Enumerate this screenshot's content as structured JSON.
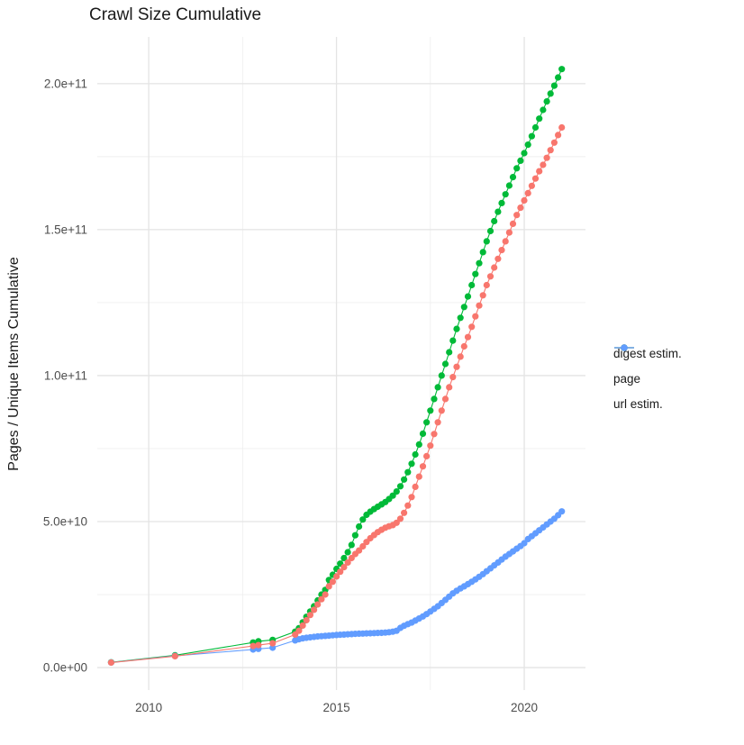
{
  "title": "Crawl Size Cumulative",
  "y_axis": {
    "label": "Pages / Unique Items Cumulative",
    "ticks": [
      {
        "value_e9": 0,
        "label": "0.0e+00"
      },
      {
        "value_e9": 50,
        "label": "5.0e+10"
      },
      {
        "value_e9": 100,
        "label": "1.0e+11"
      },
      {
        "value_e9": 150,
        "label": "1.5e+11"
      },
      {
        "value_e9": 200,
        "label": "2.0e+11"
      }
    ],
    "minor_ticks_e9": [
      25,
      75,
      125,
      175
    ]
  },
  "x_axis": {
    "ticks": [
      {
        "value": 2010,
        "label": "2010"
      },
      {
        "value": 2015,
        "label": "2015"
      },
      {
        "value": 2020,
        "label": "2020"
      }
    ],
    "minor_ticks": [
      2012.5,
      2017.5
    ]
  },
  "legend": [
    {
      "id": "digest",
      "label": "digest estim.",
      "color": "#F8766D"
    },
    {
      "id": "page",
      "label": "page",
      "color": "#00BA38"
    },
    {
      "id": "url",
      "label": "url estim.",
      "color": "#619CFF"
    }
  ],
  "colors": {
    "major_grid": "#e4e4e4",
    "minor_grid": "#efefef",
    "tick_text": "#4d4d4d",
    "title_text": "#1a1a1a"
  },
  "chart_data": {
    "type": "line",
    "title": "Crawl Size Cumulative",
    "xlabel": "",
    "ylabel": "Pages / Unique Items Cumulative",
    "x_unit": "year (decimal)",
    "y_unit": "count (billions, 1e9)",
    "xlim": [
      2008.63,
      2021.63
    ],
    "ylim_e9": [
      -7.7,
      216.0
    ],
    "grid": true,
    "legend_position": "right",
    "marker": "point",
    "series": [
      {
        "name": "digest estim.",
        "color": "#F8766D",
        "points": [
          [
            2009.0,
            1.7
          ],
          [
            2010.7,
            3.9
          ],
          [
            2012.78,
            7.4
          ],
          [
            2012.92,
            7.7
          ],
          [
            2013.3,
            8.3
          ],
          [
            2013.9,
            11.3
          ],
          [
            2014.0,
            12.6
          ],
          [
            2014.1,
            14.4
          ],
          [
            2014.2,
            16.2
          ],
          [
            2014.3,
            18.0
          ],
          [
            2014.4,
            19.8
          ],
          [
            2014.5,
            21.6
          ],
          [
            2014.6,
            23.4
          ],
          [
            2014.7,
            25.0
          ],
          [
            2014.8,
            27.8
          ],
          [
            2014.9,
            29.4
          ],
          [
            2015.0,
            31.2
          ],
          [
            2015.1,
            32.8
          ],
          [
            2015.2,
            34.4
          ],
          [
            2015.3,
            36.0
          ],
          [
            2015.4,
            37.5
          ],
          [
            2015.5,
            38.9
          ],
          [
            2015.6,
            40.1
          ],
          [
            2015.7,
            41.5
          ],
          [
            2015.8,
            43.0
          ],
          [
            2015.9,
            44.3
          ],
          [
            2016.0,
            45.4
          ],
          [
            2016.1,
            46.4
          ],
          [
            2016.2,
            47.2
          ],
          [
            2016.3,
            47.9
          ],
          [
            2016.4,
            48.4
          ],
          [
            2016.5,
            48.8
          ],
          [
            2016.6,
            49.6
          ],
          [
            2016.7,
            51.0
          ],
          [
            2016.8,
            53.0
          ],
          [
            2016.9,
            55.5
          ],
          [
            2017.0,
            58.4
          ],
          [
            2017.1,
            61.9
          ],
          [
            2017.2,
            65.4
          ],
          [
            2017.3,
            68.9
          ],
          [
            2017.4,
            72.4
          ],
          [
            2017.5,
            76.0
          ],
          [
            2017.6,
            80.0
          ],
          [
            2017.7,
            84.0
          ],
          [
            2017.8,
            88.0
          ],
          [
            2017.9,
            92.0
          ],
          [
            2018.0,
            96.0
          ],
          [
            2018.1,
            99.5
          ],
          [
            2018.2,
            103.0
          ],
          [
            2018.3,
            106.5
          ],
          [
            2018.4,
            110.0
          ],
          [
            2018.5,
            113.2
          ],
          [
            2018.6,
            116.7
          ],
          [
            2018.7,
            120.3
          ],
          [
            2018.8,
            124.0
          ],
          [
            2018.9,
            127.5
          ],
          [
            2019.0,
            131.0
          ],
          [
            2019.1,
            134.0
          ],
          [
            2019.2,
            137.0
          ],
          [
            2019.3,
            140.0
          ],
          [
            2019.4,
            143.0
          ],
          [
            2019.5,
            146.0
          ],
          [
            2019.6,
            149.0
          ],
          [
            2019.7,
            152.0
          ],
          [
            2019.8,
            155.0
          ],
          [
            2019.9,
            157.5
          ],
          [
            2020.0,
            160.0
          ],
          [
            2020.1,
            162.5
          ],
          [
            2020.2,
            165.0
          ],
          [
            2020.3,
            167.5
          ],
          [
            2020.4,
            170.0
          ],
          [
            2020.5,
            172.2
          ],
          [
            2020.6,
            174.6
          ],
          [
            2020.7,
            177.2
          ],
          [
            2020.8,
            179.8
          ],
          [
            2020.9,
            182.4
          ],
          [
            2021.0,
            185.0
          ]
        ]
      },
      {
        "name": "page",
        "color": "#00BA38",
        "points": [
          [
            2009.0,
            1.8
          ],
          [
            2010.7,
            4.2
          ],
          [
            2012.78,
            8.6
          ],
          [
            2012.92,
            9.0
          ],
          [
            2013.3,
            9.5
          ],
          [
            2013.9,
            12.3
          ],
          [
            2014.0,
            13.5
          ],
          [
            2014.1,
            15.5
          ],
          [
            2014.2,
            17.4
          ],
          [
            2014.3,
            19.2
          ],
          [
            2014.4,
            21.0
          ],
          [
            2014.5,
            23.0
          ],
          [
            2014.6,
            25.0
          ],
          [
            2014.7,
            26.6
          ],
          [
            2014.8,
            30.0
          ],
          [
            2014.9,
            31.8
          ],
          [
            2015.0,
            33.8
          ],
          [
            2015.1,
            35.6
          ],
          [
            2015.2,
            37.5
          ],
          [
            2015.3,
            39.5
          ],
          [
            2015.4,
            42.0
          ],
          [
            2015.5,
            45.3
          ],
          [
            2015.6,
            48.3
          ],
          [
            2015.7,
            50.7
          ],
          [
            2015.8,
            52.3
          ],
          [
            2015.9,
            53.4
          ],
          [
            2016.0,
            54.3
          ],
          [
            2016.1,
            55.1
          ],
          [
            2016.2,
            55.9
          ],
          [
            2016.3,
            56.7
          ],
          [
            2016.4,
            57.7
          ],
          [
            2016.5,
            58.9
          ],
          [
            2016.6,
            60.3
          ],
          [
            2016.7,
            62.1
          ],
          [
            2016.8,
            64.4
          ],
          [
            2016.9,
            66.9
          ],
          [
            2017.0,
            69.8
          ],
          [
            2017.1,
            73.0
          ],
          [
            2017.2,
            76.4
          ],
          [
            2017.3,
            80.1
          ],
          [
            2017.4,
            84.0
          ],
          [
            2017.5,
            88.0
          ],
          [
            2017.6,
            92.0
          ],
          [
            2017.7,
            96.0
          ],
          [
            2017.8,
            100.0
          ],
          [
            2017.9,
            104.0
          ],
          [
            2018.0,
            108.0
          ],
          [
            2018.1,
            112.0
          ],
          [
            2018.2,
            116.0
          ],
          [
            2018.3,
            119.8
          ],
          [
            2018.4,
            123.5
          ],
          [
            2018.5,
            127.1
          ],
          [
            2018.6,
            131.0
          ],
          [
            2018.7,
            134.8
          ],
          [
            2018.8,
            138.5
          ],
          [
            2018.9,
            142.3
          ],
          [
            2019.0,
            146.0
          ],
          [
            2019.1,
            149.5
          ],
          [
            2019.2,
            152.9
          ],
          [
            2019.3,
            156.1
          ],
          [
            2019.4,
            159.1
          ],
          [
            2019.5,
            162.1
          ],
          [
            2019.6,
            165.1
          ],
          [
            2019.7,
            168.0
          ],
          [
            2019.8,
            171.0
          ],
          [
            2019.9,
            173.6
          ],
          [
            2020.0,
            176.2
          ],
          [
            2020.1,
            179.1
          ],
          [
            2020.2,
            182.0
          ],
          [
            2020.3,
            185.0
          ],
          [
            2020.4,
            188.0
          ],
          [
            2020.5,
            191.0
          ],
          [
            2020.6,
            193.9
          ],
          [
            2020.7,
            196.6
          ],
          [
            2020.8,
            199.3
          ],
          [
            2020.9,
            202.1
          ],
          [
            2021.0,
            205.0
          ]
        ]
      },
      {
        "name": "url estim.",
        "color": "#619CFF",
        "points": [
          [
            2009.0,
            1.75
          ],
          [
            2010.7,
            4.0
          ],
          [
            2012.78,
            6.2
          ],
          [
            2012.92,
            6.4
          ],
          [
            2013.3,
            6.8
          ],
          [
            2013.9,
            9.3
          ],
          [
            2014.0,
            9.7
          ],
          [
            2014.1,
            10.0
          ],
          [
            2014.2,
            10.2
          ],
          [
            2014.3,
            10.35
          ],
          [
            2014.4,
            10.5
          ],
          [
            2014.5,
            10.65
          ],
          [
            2014.6,
            10.75
          ],
          [
            2014.7,
            10.85
          ],
          [
            2014.8,
            10.95
          ],
          [
            2014.9,
            11.05
          ],
          [
            2015.0,
            11.15
          ],
          [
            2015.1,
            11.25
          ],
          [
            2015.2,
            11.3
          ],
          [
            2015.3,
            11.4
          ],
          [
            2015.4,
            11.45
          ],
          [
            2015.5,
            11.55
          ],
          [
            2015.6,
            11.6
          ],
          [
            2015.7,
            11.65
          ],
          [
            2015.8,
            11.7
          ],
          [
            2015.9,
            11.75
          ],
          [
            2016.0,
            11.8
          ],
          [
            2016.1,
            11.85
          ],
          [
            2016.2,
            11.9
          ],
          [
            2016.3,
            12.0
          ],
          [
            2016.4,
            12.1
          ],
          [
            2016.5,
            12.3
          ],
          [
            2016.6,
            12.6
          ],
          [
            2016.7,
            13.6
          ],
          [
            2016.8,
            14.3
          ],
          [
            2016.9,
            14.9
          ],
          [
            2017.0,
            15.4
          ],
          [
            2017.1,
            16.1
          ],
          [
            2017.2,
            16.8
          ],
          [
            2017.3,
            17.5
          ],
          [
            2017.4,
            18.3
          ],
          [
            2017.5,
            19.2
          ],
          [
            2017.6,
            20.1
          ],
          [
            2017.7,
            21.0
          ],
          [
            2017.8,
            22.1
          ],
          [
            2017.9,
            23.2
          ],
          [
            2018.0,
            24.3
          ],
          [
            2018.1,
            25.4
          ],
          [
            2018.2,
            26.3
          ],
          [
            2018.3,
            27.1
          ],
          [
            2018.4,
            27.8
          ],
          [
            2018.5,
            28.6
          ],
          [
            2018.6,
            29.4
          ],
          [
            2018.7,
            30.2
          ],
          [
            2018.8,
            31.1
          ],
          [
            2018.9,
            32.0
          ],
          [
            2019.0,
            33.0
          ],
          [
            2019.1,
            34.0
          ],
          [
            2019.2,
            35.0
          ],
          [
            2019.3,
            36.0
          ],
          [
            2019.4,
            37.0
          ],
          [
            2019.5,
            38.0
          ],
          [
            2019.6,
            38.9
          ],
          [
            2019.7,
            39.8
          ],
          [
            2019.8,
            40.7
          ],
          [
            2019.9,
            41.6
          ],
          [
            2020.0,
            42.6
          ],
          [
            2020.1,
            44.0
          ],
          [
            2020.2,
            45.0
          ],
          [
            2020.3,
            46.0
          ],
          [
            2020.4,
            47.0
          ],
          [
            2020.5,
            48.0
          ],
          [
            2020.6,
            49.0
          ],
          [
            2020.7,
            50.0
          ],
          [
            2020.8,
            51.0
          ],
          [
            2020.9,
            52.2
          ],
          [
            2021.0,
            53.5
          ]
        ]
      }
    ]
  }
}
